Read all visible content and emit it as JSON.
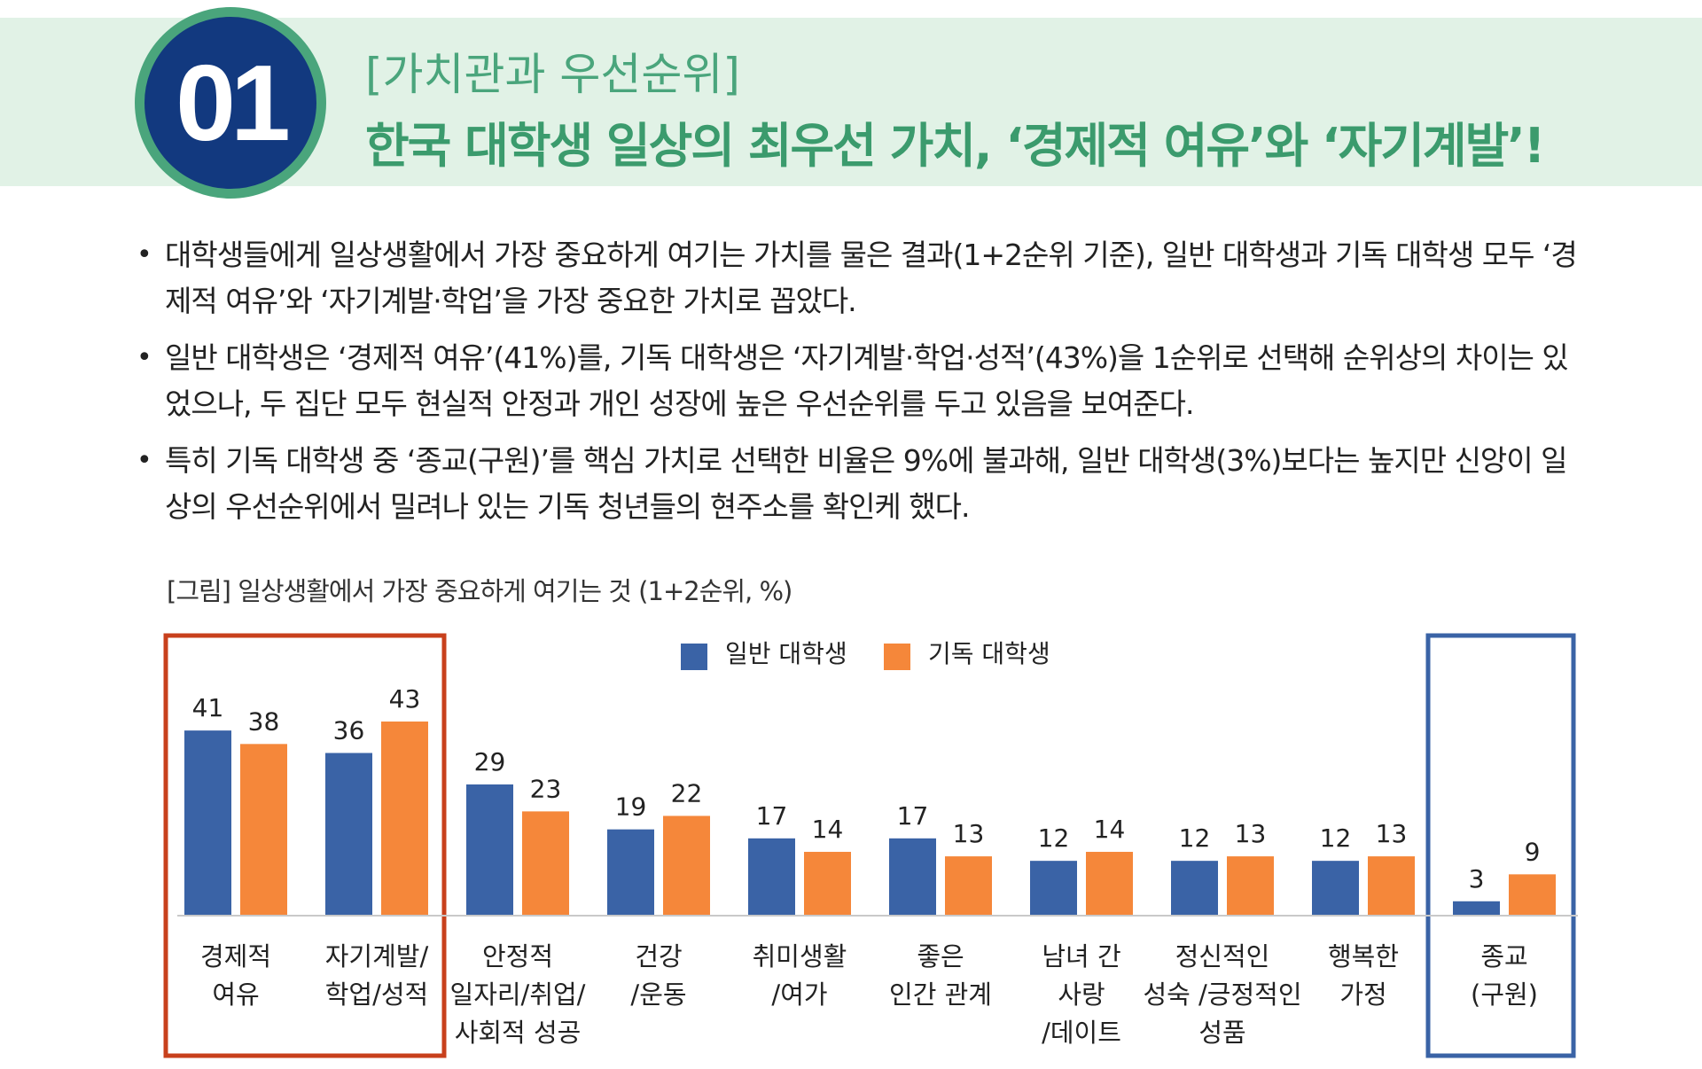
{
  "header": {
    "badge_number": "01",
    "section_tag": "[가치관과 우선순위]",
    "headline": "한국 대학생 일상의 최우선 가치, ‘경제적 여유’와 ‘자기계발’!"
  },
  "bullets": [
    "대학생들에게 일상생활에서 가장 중요하게 여기는 가치를 물은 결과(1+2순위 기준), 일반 대학생과 기독 대학생 모두 ‘경제적 여유’와 ‘자기계발·학업’을 가장 중요한 가치로 꼽았다.",
    "일반 대학생은 ‘경제적 여유’(41%)를, 기독 대학생은 ‘자기계발·학업·성적’(43%)을 1순위로 선택해 순위상의 차이는 있었으나, 두 집단 모두 현실적 안정과 개인 성장에 높은 우선순위를 두고 있음을 보여준다.",
    "특히 기독 대학생 중 ‘종교(구원)’를 핵심 가치로 선택한 비율은 9%에 불과해, 일반 대학생(3%)보다는 높지만 신앙이 일상의 우선순위에서 밀려나 있는 기독 청년들의 현주소를 확인케 했다."
  ],
  "bullet_icon": "bullet-dot",
  "caption": "[그림] 일상생활에서 가장 중요하게 여기는 것 (1+2순위, %)",
  "colors": {
    "series_general": "#3a63a6",
    "series_christian": "#f5873a",
    "highlight_left": "#c8401c",
    "highlight_right": "#3a63a6",
    "header_band": "#e1f2e6",
    "badge": "#12397f"
  },
  "chart_data": {
    "type": "bar",
    "title": "[그림] 일상생활에서 가장 중요하게 여기는 것 (1+2순위, %)",
    "categories": [
      "경제적\n여유",
      "자기계발/\n학업/성적",
      "안정적\n일자리/취업/\n사회적 성공",
      "건강\n/운동",
      "취미생활\n/여가",
      "좋은\n인간 관계",
      "남녀 간\n사랑\n/데이트",
      "정신적인\n성숙 /긍정적인\n성품",
      "행복한\n가정",
      "종교\n(구원)"
    ],
    "series": [
      {
        "name": "일반 대학생",
        "values": [
          41,
          36,
          29,
          19,
          17,
          17,
          12,
          12,
          12,
          3
        ]
      },
      {
        "name": "기독 대학생",
        "values": [
          38,
          43,
          23,
          22,
          14,
          13,
          14,
          13,
          13,
          9
        ]
      }
    ],
    "ylim": [
      0,
      46
    ],
    "grid": false,
    "legend_position": "top-center",
    "data_labels": true,
    "highlighted_categories": {
      "left_box": [
        0,
        1
      ],
      "right_box": [
        9
      ]
    }
  }
}
